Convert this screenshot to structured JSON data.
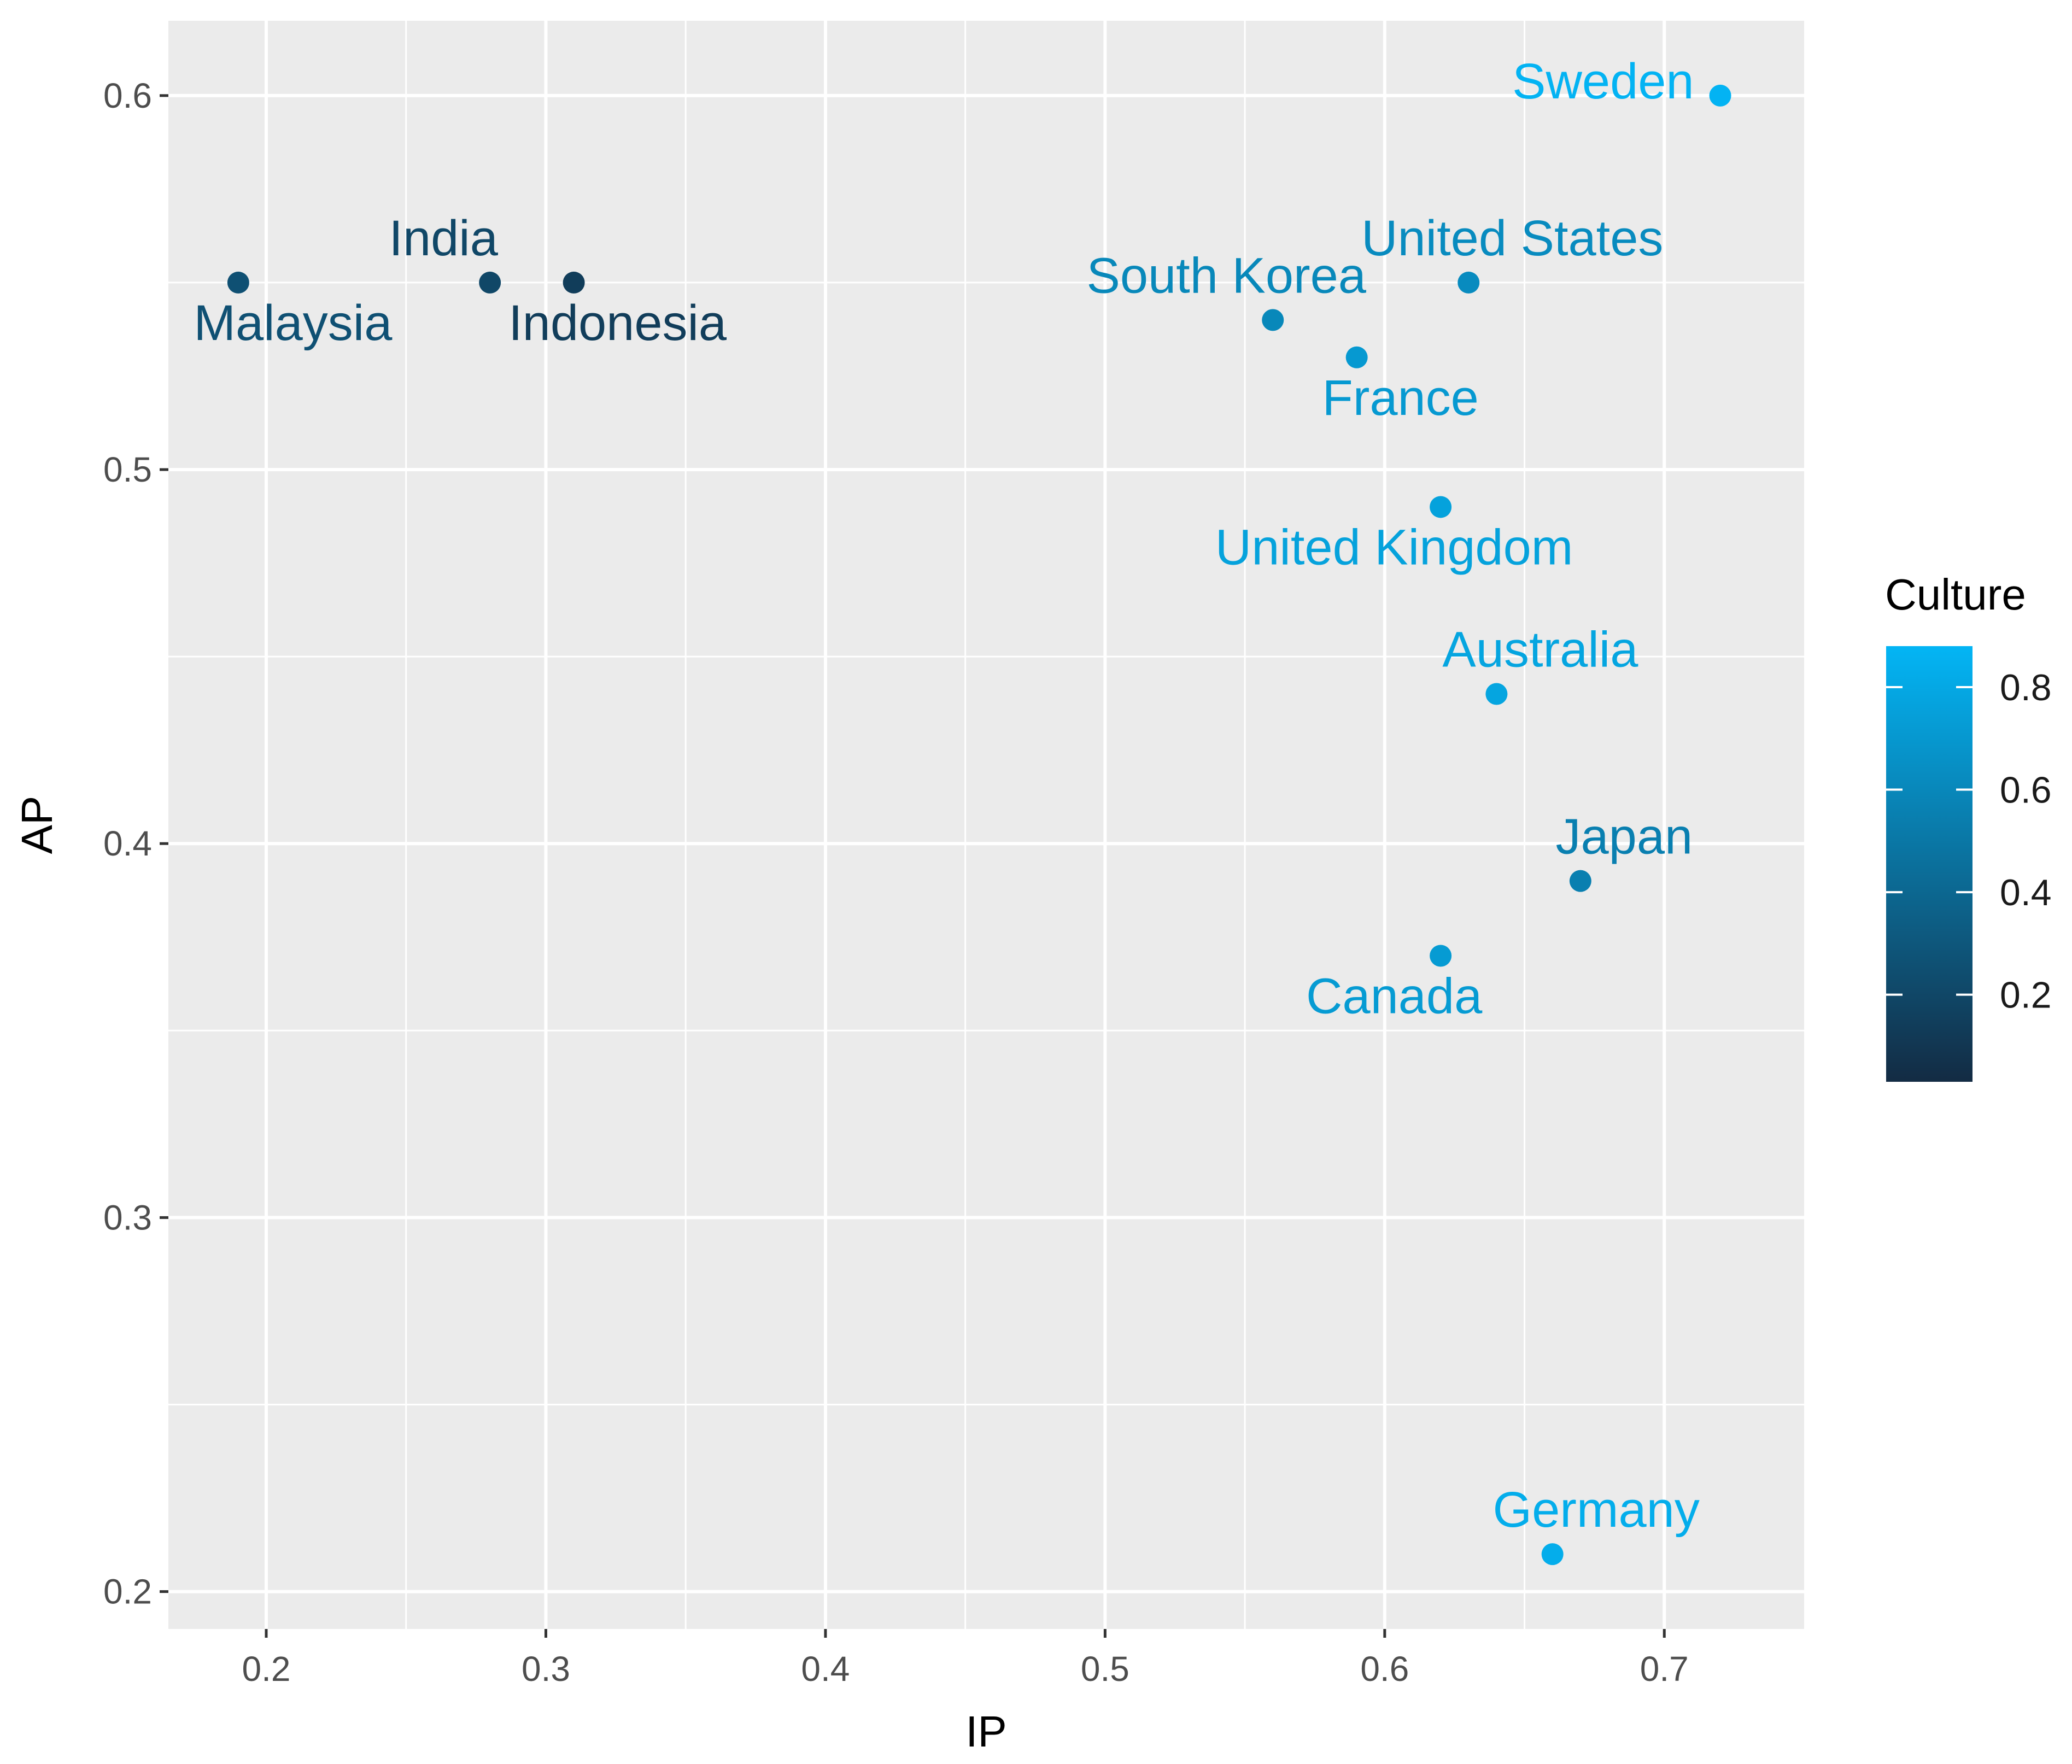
{
  "chart_data": {
    "type": "scatter",
    "title": "",
    "xlabel": "IP",
    "ylabel": "AP",
    "xlim": [
      0.165,
      0.75
    ],
    "ylim": [
      0.19,
      0.62
    ],
    "x_ticks": [
      0.2,
      0.3,
      0.4,
      0.5,
      0.6,
      0.7
    ],
    "x_tick_labels": [
      "0.2",
      "0.3",
      "0.4",
      "0.5",
      "0.6",
      "0.7"
    ],
    "y_ticks": [
      0.2,
      0.3,
      0.4,
      0.5,
      0.6
    ],
    "y_tick_labels": [
      "0.2",
      "0.3",
      "0.4",
      "0.5",
      "0.6"
    ],
    "grid": true,
    "legend": {
      "title": "Culture",
      "type": "continuous-colorbar",
      "placement": "right",
      "range": [
        0.03,
        0.88
      ],
      "ticks": [
        0.2,
        0.4,
        0.6,
        0.8
      ],
      "tick_labels": [
        "0.2",
        "0.4",
        "0.6",
        "0.8"
      ],
      "color_low": "#132b43",
      "color_high": "#03b5f5"
    },
    "points": [
      {
        "label": "Malaysia",
        "x": 0.19,
        "y": 0.55,
        "culture": 0.26,
        "label_pos": "below"
      },
      {
        "label": "India",
        "x": 0.28,
        "y": 0.55,
        "culture": 0.2,
        "label_pos": "above-left"
      },
      {
        "label": "Indonesia",
        "x": 0.31,
        "y": 0.55,
        "culture": 0.14,
        "label_pos": "below-right"
      },
      {
        "label": "South Korea",
        "x": 0.56,
        "y": 0.54,
        "culture": 0.6,
        "label_pos": "above-left"
      },
      {
        "label": "France",
        "x": 0.59,
        "y": 0.53,
        "culture": 0.71,
        "label_pos": "below-right"
      },
      {
        "label": "United States",
        "x": 0.63,
        "y": 0.55,
        "culture": 0.62,
        "label_pos": "above"
      },
      {
        "label": "Sweden",
        "x": 0.72,
        "y": 0.6,
        "culture": 0.87,
        "label_pos": "left"
      },
      {
        "label": "United Kingdom",
        "x": 0.62,
        "y": 0.49,
        "culture": 0.76,
        "label_pos": "below-left"
      },
      {
        "label": "Australia",
        "x": 0.64,
        "y": 0.44,
        "culture": 0.78,
        "label_pos": "above-right"
      },
      {
        "label": "Japan",
        "x": 0.67,
        "y": 0.39,
        "culture": 0.55,
        "label_pos": "above-right"
      },
      {
        "label": "Canada",
        "x": 0.62,
        "y": 0.37,
        "culture": 0.72,
        "label_pos": "below-left"
      },
      {
        "label": "Germany",
        "x": 0.66,
        "y": 0.21,
        "culture": 0.83,
        "label_pos": "above-right"
      }
    ]
  }
}
